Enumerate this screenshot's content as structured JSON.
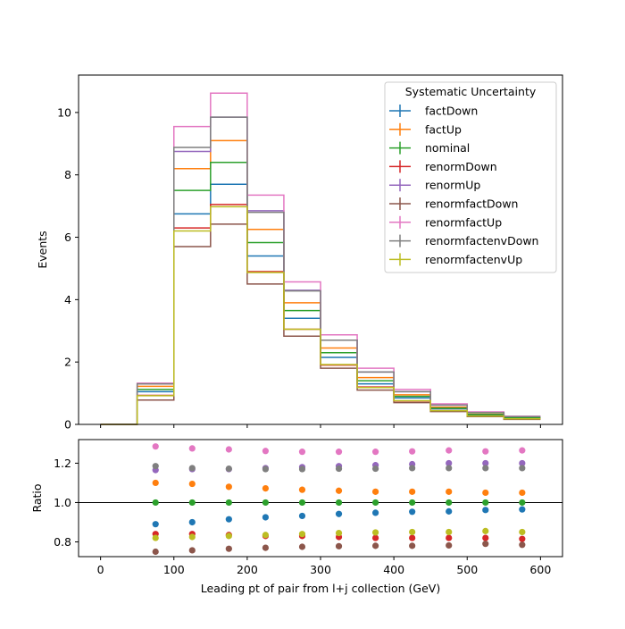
{
  "chart_data": [
    {
      "type": "line",
      "subtype": "step-histogram",
      "ylabel": "Events",
      "xlim": [
        -30,
        630
      ],
      "ylim": [
        0,
        11.2
      ],
      "yticks": [
        0,
        2,
        4,
        6,
        8,
        10
      ],
      "xticks": [
        0,
        100,
        200,
        300,
        400,
        500,
        600
      ],
      "x_edges": [
        0,
        50,
        100,
        150,
        200,
        250,
        300,
        350,
        400,
        450,
        500,
        550,
        600
      ],
      "legend": {
        "title": "Systematic Uncertainty",
        "placement": "top-right"
      },
      "series": [
        {
          "name": "factDown",
          "color": "#1f77b4",
          "values": [
            0,
            1.05,
            6.75,
            7.7,
            5.4,
            3.4,
            2.15,
            1.3,
            0.85,
            0.5,
            0.3,
            0.2
          ]
        },
        {
          "name": "factUp",
          "color": "#ff7f0e",
          "values": [
            0,
            1.22,
            8.2,
            9.1,
            6.25,
            3.9,
            2.45,
            1.5,
            0.95,
            0.55,
            0.33,
            0.22
          ]
        },
        {
          "name": "nominal",
          "color": "#2ca02c",
          "values": [
            0,
            1.12,
            7.5,
            8.4,
            5.83,
            3.65,
            2.3,
            1.4,
            0.9,
            0.52,
            0.32,
            0.21
          ]
        },
        {
          "name": "renormDown",
          "color": "#d62728",
          "values": [
            0,
            0.93,
            6.3,
            7.05,
            4.9,
            3.05,
            1.9,
            1.2,
            0.75,
            0.44,
            0.27,
            0.18
          ]
        },
        {
          "name": "renormUp",
          "color": "#9467bd",
          "values": [
            0,
            1.3,
            8.75,
            9.85,
            6.85,
            4.3,
            2.7,
            1.68,
            1.05,
            0.62,
            0.38,
            0.25
          ]
        },
        {
          "name": "renormfactDown",
          "color": "#8c564b",
          "values": [
            0,
            0.78,
            5.7,
            6.42,
            4.5,
            2.83,
            1.8,
            1.1,
            0.7,
            0.41,
            0.25,
            0.16
          ]
        },
        {
          "name": "renormfactUp",
          "color": "#e377c2",
          "values": [
            0,
            1.32,
            9.55,
            10.62,
            7.35,
            4.57,
            2.87,
            1.8,
            1.12,
            0.66,
            0.4,
            0.26
          ]
        },
        {
          "name": "renormfactenvDown",
          "color": "#7f7f7f",
          "values": [
            0,
            1.3,
            8.88,
            9.85,
            6.8,
            4.28,
            2.7,
            1.68,
            1.05,
            0.62,
            0.38,
            0.25
          ]
        },
        {
          "name": "renormfactenvUp",
          "color": "#bcbd22",
          "values": [
            0,
            0.92,
            6.2,
            6.98,
            4.87,
            3.05,
            1.92,
            1.18,
            0.76,
            0.44,
            0.27,
            0.18
          ]
        }
      ]
    },
    {
      "type": "scatter",
      "ylabel": "Ratio",
      "xlabel": "Leading pt of pair from l+j collection (GeV)",
      "xlim": [
        -30,
        630
      ],
      "ylim": [
        0.725,
        1.32
      ],
      "yticks": [
        0.8,
        1.0,
        1.2
      ],
      "yticklabels": [
        "0.8",
        "1.0",
        "1.2"
      ],
      "xticks": [
        0,
        100,
        200,
        300,
        400,
        500,
        600
      ],
      "x": [
        75,
        125,
        175,
        225,
        275,
        325,
        375,
        425,
        475,
        525,
        575
      ],
      "reference_line": 1.0,
      "series": [
        {
          "name": "factDown",
          "color": "#1f77b4",
          "values": [
            0.89,
            0.9,
            0.915,
            0.925,
            0.932,
            0.942,
            0.948,
            0.953,
            0.955,
            0.962,
            0.965
          ]
        },
        {
          "name": "factUp",
          "color": "#ff7f0e",
          "values": [
            1.1,
            1.095,
            1.08,
            1.072,
            1.065,
            1.06,
            1.055,
            1.055,
            1.055,
            1.05,
            1.05
          ]
        },
        {
          "name": "nominal",
          "color": "#2ca02c",
          "values": [
            1.0,
            1.0,
            1.0,
            1.0,
            1.0,
            1.0,
            1.0,
            1.0,
            1.0,
            1.0,
            1.0
          ]
        },
        {
          "name": "renormDown",
          "color": "#d62728",
          "values": [
            0.84,
            0.84,
            0.835,
            0.83,
            0.83,
            0.825,
            0.82,
            0.82,
            0.82,
            0.82,
            0.815
          ]
        },
        {
          "name": "renormUp",
          "color": "#9467bd",
          "values": [
            1.165,
            1.17,
            1.17,
            1.175,
            1.18,
            1.185,
            1.19,
            1.195,
            1.2,
            1.2,
            1.2
          ]
        },
        {
          "name": "renormfactDown",
          "color": "#8c564b",
          "values": [
            0.75,
            0.757,
            0.765,
            0.77,
            0.775,
            0.778,
            0.78,
            0.78,
            0.782,
            0.79,
            0.785
          ]
        },
        {
          "name": "renormfactUp",
          "color": "#e377c2",
          "values": [
            1.285,
            1.275,
            1.27,
            1.262,
            1.258,
            1.258,
            1.258,
            1.26,
            1.265,
            1.26,
            1.265
          ]
        },
        {
          "name": "renormfactenvDown",
          "color": "#7f7f7f",
          "values": [
            1.185,
            1.175,
            1.172,
            1.17,
            1.17,
            1.172,
            1.172,
            1.175,
            1.175,
            1.175,
            1.175
          ]
        },
        {
          "name": "renormfactenvUp",
          "color": "#bcbd22",
          "values": [
            0.82,
            0.825,
            0.83,
            0.835,
            0.84,
            0.845,
            0.848,
            0.85,
            0.85,
            0.855,
            0.85
          ]
        }
      ]
    }
  ]
}
